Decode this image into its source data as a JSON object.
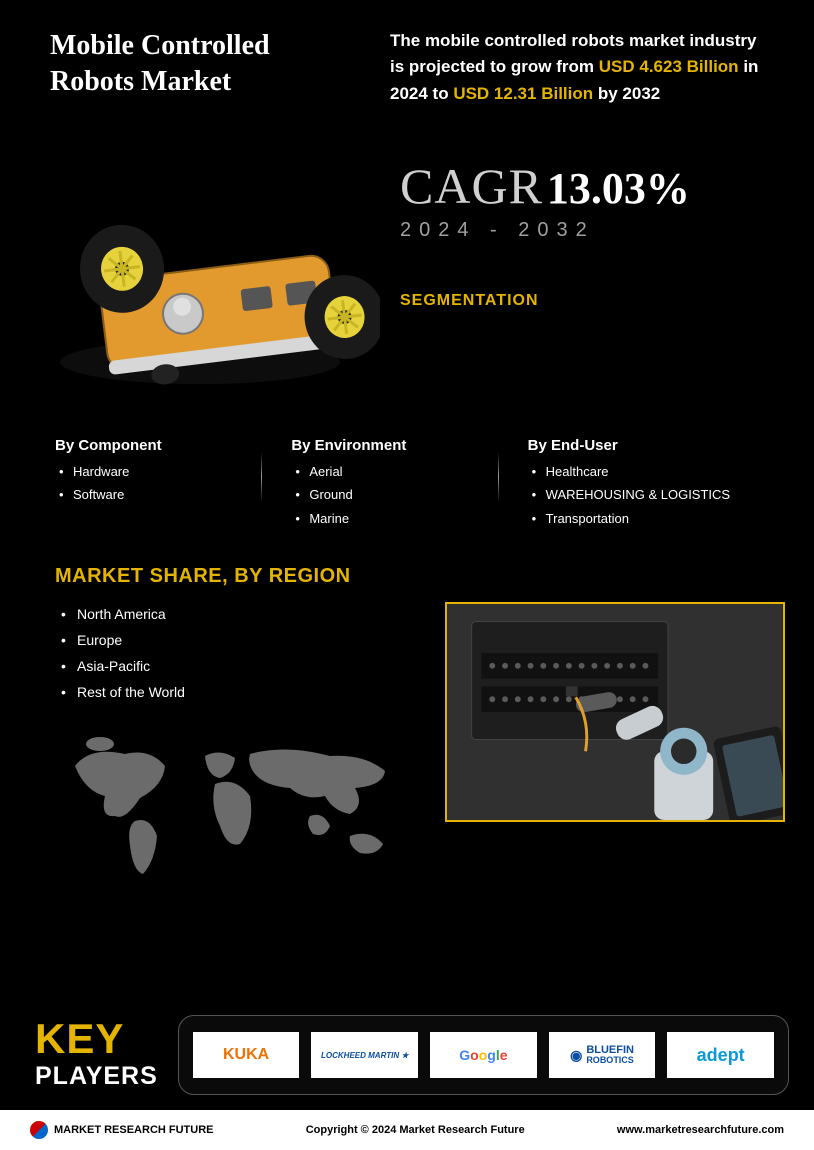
{
  "colors": {
    "background": "#000000",
    "text": "#ffffff",
    "accent": "#e4b400",
    "muted": "#a0a0a0",
    "footer_bg": "#ffffff",
    "footer_text": "#000000",
    "logo_box_bg": "#ffffff",
    "border_gray": "#555555"
  },
  "header": {
    "title": "Mobile Controlled Robots Market",
    "projection": {
      "prefix": "The mobile controlled robots market industry is projected to grow from ",
      "value_from": "USD 4.623 Billion",
      "mid": " in 2024 to ",
      "value_to": "USD 12.31 Billion",
      "suffix": " by 2032"
    }
  },
  "cagr": {
    "label": "CAGR",
    "value": "13.03%",
    "years": "2024 - 2032"
  },
  "segmentation": {
    "heading": "SEGMENTATION",
    "columns": [
      {
        "title": "By Component",
        "items": [
          "Hardware",
          "Software"
        ]
      },
      {
        "title": "By Environment",
        "items": [
          "Aerial",
          "Ground",
          "Marine"
        ]
      },
      {
        "title": "By End-User",
        "items": [
          "Healthcare",
          "WAREHOUSING & LOGISTICS",
          "Transportation"
        ]
      }
    ]
  },
  "region": {
    "heading": "MARKET SHARE, BY REGION",
    "items": [
      "North America",
      "Europe",
      "Asia-Pacific",
      "Rest of the World"
    ]
  },
  "key_players": {
    "label_key": "KEY",
    "label_players": "PLAYERS",
    "logos": [
      {
        "name": "KUKA",
        "color": "#ee7203"
      },
      {
        "name": "Lockheed Martin",
        "color": "#0b4ea2"
      },
      {
        "name": "Google",
        "color": "#4285f4"
      },
      {
        "name": "BLUEFIN ROBOTICS",
        "color": "#0b4ea2"
      },
      {
        "name": "adept",
        "color": "#0b9ad6"
      }
    ]
  },
  "footer": {
    "brand": "MARKET RESEARCH FUTURE",
    "copyright": "Copyright © 2024 Market Research Future",
    "url": "www.marketresearchfuture.com"
  },
  "typography": {
    "title_fontsize": 28,
    "projection_fontsize": 17,
    "cagr_label_fontsize": 50,
    "cagr_value_fontsize": 44,
    "cagr_years_fontsize": 20,
    "cagr_years_letterspacing": 8,
    "seg_heading_fontsize": 16,
    "seg_title_fontsize": 15,
    "seg_item_fontsize": 13,
    "region_heading_fontsize": 20,
    "region_item_fontsize": 14,
    "key_fontsize": 42,
    "players_fontsize": 25,
    "footer_fontsize": 11
  }
}
